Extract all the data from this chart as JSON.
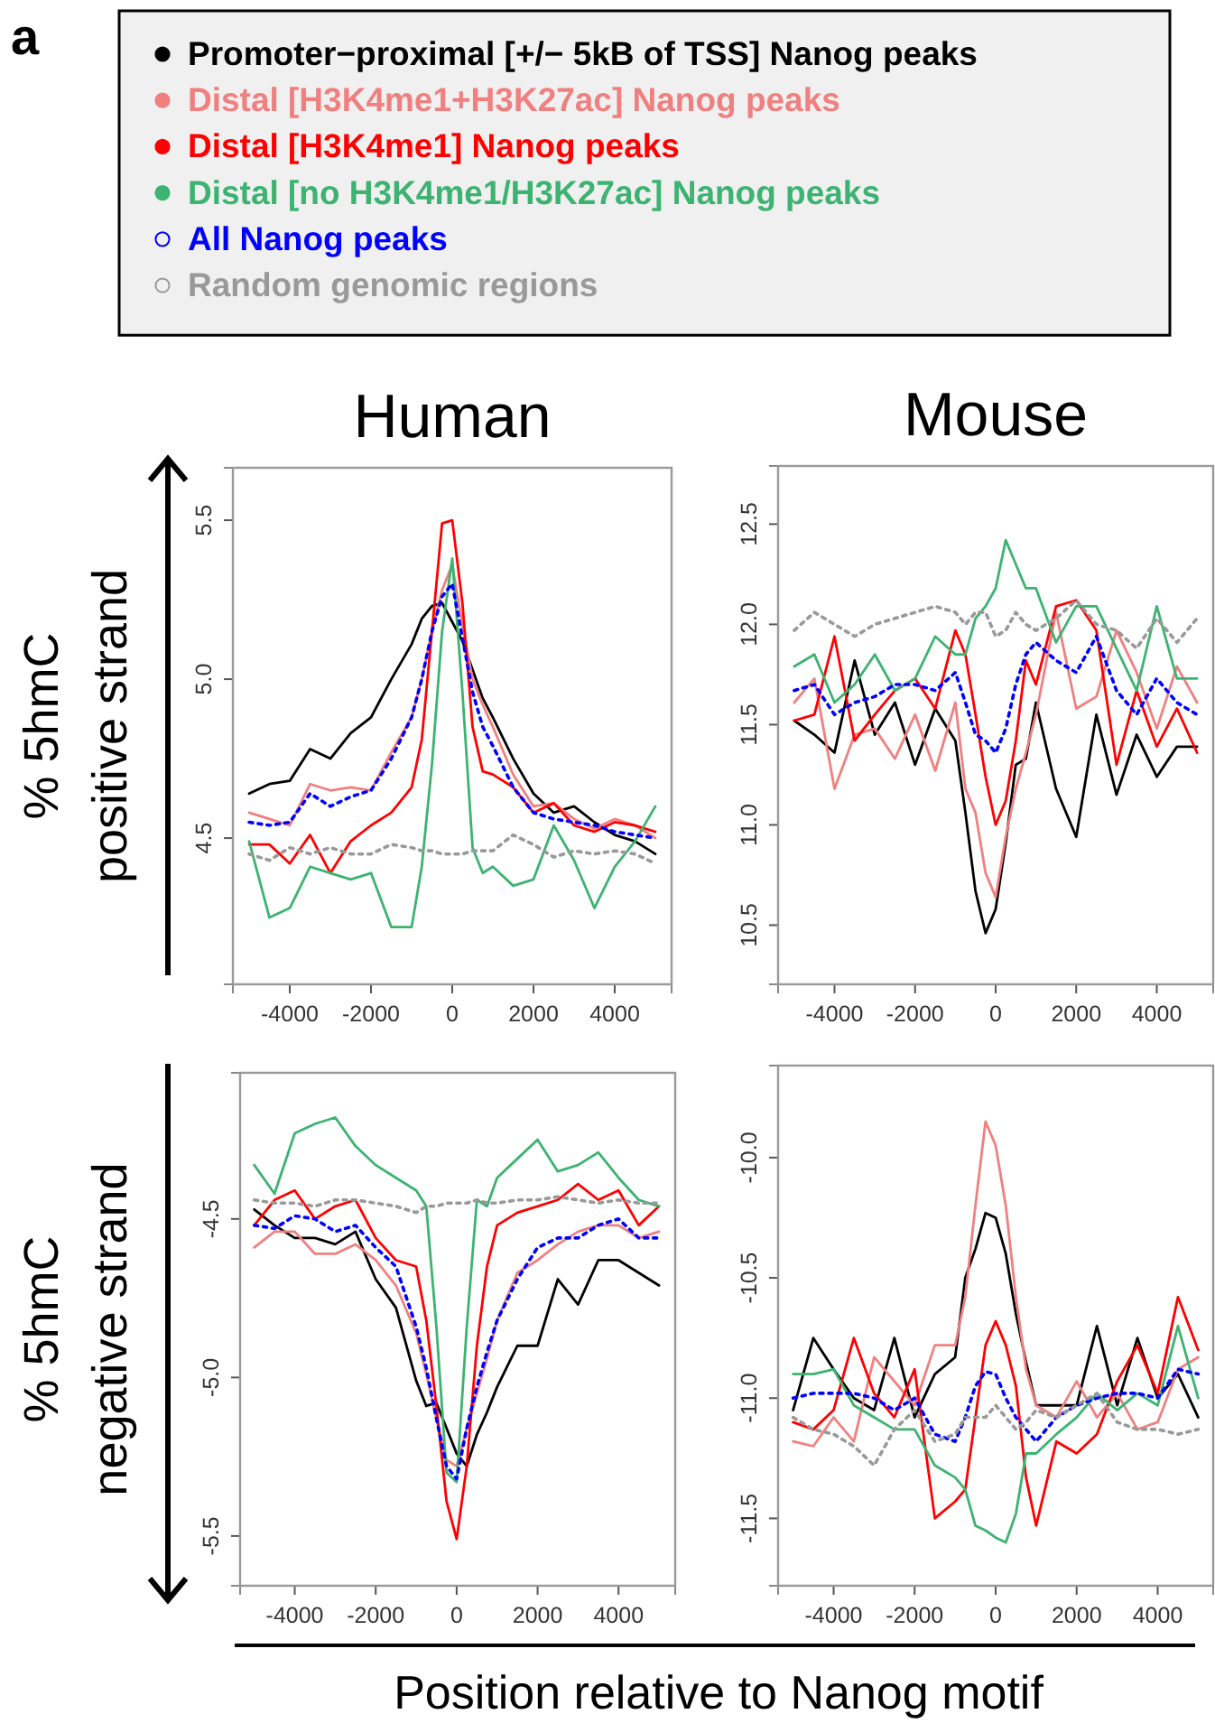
{
  "chart_data": [
    {
      "type": "line",
      "title": "Human",
      "ylabel": "% 5hmC positive strand",
      "annotations": [
        "a"
      ],
      "legend": "top",
      "xlim": [
        -5400,
        5400
      ],
      "ylim": [
        4.04,
        5.665
      ],
      "xticks": [
        -4000,
        -2000,
        0,
        2000,
        4000
      ],
      "yticks": [
        4.5,
        {
          "value": 5,
          "label": "5.0"
        },
        5.5
      ],
      "x": [
        -5000,
        -4500,
        -4000,
        -3500,
        -3000,
        -2500,
        -2000,
        -1500,
        -1000,
        -750,
        -500,
        -250,
        0,
        250,
        500,
        750,
        1000,
        1500,
        2000,
        2500,
        3000,
        3500,
        4000,
        4500,
        5000
      ],
      "series": [
        {
          "name": "Promoter−proximal [+/− 5kB of TSS] Nanog peaks",
          "color": "#000000",
          "line_style": "solid",
          "values": [
            4.64,
            4.67,
            4.68,
            4.78,
            4.75,
            4.83,
            4.88,
            5.0,
            5.11,
            5.19,
            5.23,
            5.24,
            5.18,
            5.12,
            5.03,
            4.94,
            4.88,
            4.75,
            4.64,
            4.58,
            4.6,
            4.55,
            4.51,
            4.49,
            4.45
          ]
        },
        {
          "name": "Distal [H3K4me1+H3K27ac] Nanog peaks",
          "color": "#f08080",
          "line_style": "solid",
          "values": [
            4.58,
            4.56,
            4.54,
            4.67,
            4.65,
            4.66,
            4.65,
            4.77,
            4.88,
            5.0,
            5.15,
            5.28,
            5.36,
            5.17,
            5.0,
            4.92,
            4.85,
            4.7,
            4.6,
            4.61,
            4.56,
            4.53,
            4.56,
            4.54,
            4.5
          ]
        },
        {
          "name": "Distal [H3K4me1] Nanog peaks",
          "color": "#ff0000",
          "line_style": "solid",
          "values": [
            4.48,
            4.48,
            4.42,
            4.51,
            4.39,
            4.49,
            4.54,
            4.58,
            4.66,
            4.81,
            5.15,
            5.49,
            5.5,
            5.24,
            4.85,
            4.71,
            4.7,
            4.66,
            4.58,
            4.61,
            4.54,
            4.52,
            4.55,
            4.54,
            4.52
          ]
        },
        {
          "name": "Distal [no H3K4me1/H3K27ac] Nanog peaks",
          "color": "#3cb371",
          "line_style": "solid",
          "values": [
            4.49,
            4.25,
            4.28,
            4.41,
            4.39,
            4.37,
            4.39,
            4.22,
            4.22,
            4.41,
            4.73,
            5.15,
            5.38,
            4.96,
            4.47,
            4.39,
            4.41,
            4.35,
            4.37,
            4.54,
            4.43,
            4.28,
            4.41,
            4.49,
            4.6
          ]
        },
        {
          "name": "All Nanog peaks",
          "color": "#0000ff",
          "line_style": "dotted",
          "values": [
            4.55,
            4.54,
            4.55,
            4.64,
            4.6,
            4.63,
            4.65,
            4.75,
            4.88,
            5.0,
            5.15,
            5.26,
            5.3,
            5.13,
            4.96,
            4.85,
            4.79,
            4.66,
            4.58,
            4.56,
            4.55,
            4.54,
            4.52,
            4.51,
            4.5
          ]
        },
        {
          "name": "Random genomic regions",
          "color": "#999999",
          "line_style": "dotted",
          "values": [
            4.45,
            4.43,
            4.47,
            4.45,
            4.47,
            4.45,
            4.45,
            4.48,
            4.47,
            4.46,
            4.46,
            4.45,
            4.45,
            4.45,
            4.46,
            4.46,
            4.46,
            4.51,
            4.48,
            4.44,
            4.46,
            4.45,
            4.46,
            4.45,
            4.42
          ]
        }
      ]
    },
    {
      "type": "line",
      "title": "Mouse",
      "xlim": [
        -5400,
        5400
      ],
      "ylim": [
        10.205,
        12.79
      ],
      "xticks": [
        -4000,
        -2000,
        0,
        2000,
        4000
      ],
      "yticks": [
        10.5,
        {
          "value": 11,
          "label": "11.0"
        },
        11.5,
        {
          "value": 12,
          "label": "12.0"
        },
        12.5
      ],
      "x": [
        -5000,
        -4500,
        -4000,
        -3500,
        -3000,
        -2500,
        -2000,
        -1500,
        -1000,
        -750,
        -500,
        -250,
        0,
        250,
        500,
        750,
        1000,
        1500,
        2000,
        2500,
        3000,
        3500,
        4000,
        4500,
        5000
      ],
      "series": [
        {
          "color": "#000000",
          "line_style": "solid",
          "values": [
            11.52,
            11.45,
            11.36,
            11.82,
            11.45,
            11.61,
            11.3,
            11.58,
            11.42,
            11.06,
            10.67,
            10.46,
            10.58,
            10.91,
            11.3,
            11.33,
            11.61,
            11.18,
            10.94,
            11.55,
            11.15,
            11.45,
            11.24,
            11.39,
            11.39
          ]
        },
        {
          "color": "#f08080",
          "line_style": "solid",
          "values": [
            11.61,
            11.73,
            11.18,
            11.45,
            11.48,
            11.33,
            11.55,
            11.27,
            11.61,
            11.18,
            11.06,
            10.76,
            10.64,
            10.94,
            11.18,
            11.36,
            11.55,
            12.06,
            11.58,
            11.64,
            11.97,
            11.76,
            11.48,
            11.79,
            11.61
          ]
        },
        {
          "color": "#ff0000",
          "line_style": "solid",
          "values": [
            11.52,
            11.55,
            11.94,
            11.42,
            11.55,
            11.67,
            11.73,
            11.58,
            11.97,
            11.85,
            11.55,
            11.24,
            11.0,
            11.12,
            11.42,
            11.82,
            11.7,
            12.09,
            12.12,
            11.97,
            11.3,
            11.67,
            11.39,
            11.58,
            11.36
          ]
        },
        {
          "color": "#3cb371",
          "line_style": "solid",
          "values": [
            11.79,
            11.85,
            11.61,
            11.7,
            11.85,
            11.67,
            11.73,
            11.94,
            11.85,
            11.85,
            12.03,
            12.09,
            12.18,
            12.42,
            12.3,
            12.18,
            12.18,
            11.91,
            12.09,
            12.09,
            11.88,
            11.67,
            12.09,
            11.73,
            11.73
          ]
        },
        {
          "color": "#0000ff",
          "line_style": "dotted",
          "values": [
            11.67,
            11.7,
            11.55,
            11.61,
            11.64,
            11.7,
            11.7,
            11.67,
            11.76,
            11.61,
            11.45,
            11.42,
            11.36,
            11.48,
            11.7,
            11.85,
            11.91,
            11.82,
            11.76,
            11.94,
            11.67,
            11.55,
            11.73,
            11.61,
            11.55
          ]
        },
        {
          "color": "#999999",
          "line_style": "dotted",
          "values": [
            11.97,
            12.06,
            12.0,
            11.94,
            12.0,
            12.03,
            12.06,
            12.09,
            12.06,
            12.0,
            12.06,
            12.06,
            11.94,
            11.97,
            12.06,
            12.0,
            11.97,
            12.03,
            12.12,
            12.0,
            11.97,
            11.88,
            12.03,
            11.91,
            12.03
          ]
        }
      ]
    },
    {
      "type": "line",
      "ylabel": "% 5hmC negative strand",
      "xlabel": "Position relative to Nanog motif",
      "xlim": [
        -5350,
        5400
      ],
      "ylim": [
        -5.657,
        -4.039
      ],
      "xticks": [
        -4000,
        -2000,
        0,
        2000,
        4000
      ],
      "yticks": [
        -5.5,
        {
          "value": -5,
          "label": "-5.0"
        },
        -4.5
      ],
      "x": [
        -5000,
        -4500,
        -4000,
        -3500,
        -3000,
        -2500,
        -2000,
        -1500,
        -1000,
        -750,
        -500,
        -250,
        0,
        250,
        500,
        750,
        1000,
        1500,
        2000,
        2500,
        3000,
        3500,
        4000,
        4500,
        5000
      ],
      "series": [
        {
          "color": "#000000",
          "line_style": "solid",
          "values": [
            -4.47,
            -4.52,
            -4.56,
            -4.56,
            -4.58,
            -4.54,
            -4.69,
            -4.78,
            -5.01,
            -5.09,
            -5.08,
            -5.16,
            -5.24,
            -5.28,
            -5.18,
            -5.11,
            -5.03,
            -4.9,
            -4.9,
            -4.69,
            -4.77,
            -4.63,
            -4.63,
            -4.67,
            -4.71
          ]
        },
        {
          "color": "#f08080",
          "line_style": "solid",
          "values": [
            -4.59,
            -4.54,
            -4.54,
            -4.61,
            -4.61,
            -4.58,
            -4.63,
            -4.71,
            -4.86,
            -4.99,
            -5.13,
            -5.26,
            -5.28,
            -5.16,
            -5.05,
            -4.94,
            -4.82,
            -4.67,
            -4.63,
            -4.58,
            -4.54,
            -4.52,
            -4.52,
            -4.56,
            -4.54
          ]
        },
        {
          "color": "#ff0000",
          "line_style": "solid",
          "values": [
            -4.52,
            -4.44,
            -4.41,
            -4.5,
            -4.46,
            -4.44,
            -4.56,
            -4.63,
            -4.65,
            -4.82,
            -5.09,
            -5.39,
            -5.51,
            -5.28,
            -4.9,
            -4.65,
            -4.52,
            -4.48,
            -4.46,
            -4.44,
            -4.39,
            -4.44,
            -4.41,
            -4.52,
            -4.46
          ]
        },
        {
          "color": "#3cb371",
          "line_style": "solid",
          "values": [
            -4.33,
            -4.42,
            -4.23,
            -4.2,
            -4.18,
            -4.27,
            -4.33,
            -4.37,
            -4.41,
            -4.46,
            -4.84,
            -5.3,
            -5.33,
            -4.84,
            -4.44,
            -4.46,
            -4.37,
            -4.31,
            -4.25,
            -4.35,
            -4.33,
            -4.29,
            -4.37,
            -4.44,
            -4.46
          ]
        },
        {
          "color": "#0000ff",
          "line_style": "dotted",
          "values": [
            -4.52,
            -4.53,
            -4.49,
            -4.5,
            -4.54,
            -4.52,
            -4.59,
            -4.65,
            -4.84,
            -4.97,
            -5.13,
            -5.28,
            -5.32,
            -5.16,
            -5.03,
            -4.92,
            -4.82,
            -4.69,
            -4.59,
            -4.56,
            -4.56,
            -4.52,
            -4.5,
            -4.56,
            -4.56
          ]
        },
        {
          "color": "#999999",
          "line_style": "dotted",
          "values": [
            -4.44,
            -4.45,
            -4.45,
            -4.46,
            -4.44,
            -4.44,
            -4.45,
            -4.46,
            -4.48,
            -4.46,
            -4.46,
            -4.45,
            -4.45,
            -4.45,
            -4.44,
            -4.45,
            -4.45,
            -4.44,
            -4.44,
            -4.43,
            -4.44,
            -4.45,
            -4.44,
            -4.45,
            -4.45
          ]
        }
      ]
    },
    {
      "type": "line",
      "xlim": [
        -5370,
        5370
      ],
      "ylim": [
        -11.78,
        -9.6175
      ],
      "xticks": [
        -4000,
        -2000,
        0,
        2000,
        4000
      ],
      "yticks": [
        -11.5,
        {
          "value": -11,
          "label": "-11.0"
        },
        -10.5,
        {
          "value": -10,
          "label": "-10.0"
        }
      ],
      "x": [
        -5000,
        -4500,
        -4000,
        -3500,
        -3000,
        -2500,
        -2000,
        -1500,
        -1000,
        -750,
        -500,
        -250,
        0,
        250,
        500,
        750,
        1000,
        1500,
        2000,
        2500,
        3000,
        3500,
        4000,
        4500,
        5000
      ],
      "series": [
        {
          "color": "#000000",
          "line_style": "solid",
          "values": [
            -11.05,
            -10.75,
            -10.88,
            -11.0,
            -11.05,
            -10.75,
            -11.08,
            -10.9,
            -10.83,
            -10.5,
            -10.38,
            -10.23,
            -10.25,
            -10.4,
            -10.65,
            -10.85,
            -11.03,
            -11.03,
            -11.03,
            -10.7,
            -11.03,
            -10.75,
            -11.0,
            -10.9,
            -11.08
          ]
        },
        {
          "color": "#f08080",
          "line_style": "solid",
          "values": [
            -11.18,
            -11.2,
            -11.08,
            -11.18,
            -10.83,
            -10.93,
            -11.03,
            -10.78,
            -10.78,
            -10.58,
            -10.2,
            -9.85,
            -9.95,
            -10.2,
            -10.58,
            -10.88,
            -11.03,
            -11.08,
            -10.93,
            -11.08,
            -10.98,
            -11.13,
            -11.1,
            -10.88,
            -10.83
          ]
        },
        {
          "color": "#ff0000",
          "line_style": "solid",
          "values": [
            -11.1,
            -11.13,
            -11.05,
            -10.75,
            -10.98,
            -11.08,
            -10.88,
            -11.5,
            -11.43,
            -11.38,
            -11.08,
            -10.78,
            -10.68,
            -10.78,
            -10.95,
            -11.33,
            -11.53,
            -11.18,
            -11.23,
            -11.15,
            -10.93,
            -10.78,
            -10.98,
            -10.58,
            -10.8
          ]
        },
        {
          "color": "#3cb371",
          "line_style": "solid",
          "values": [
            -10.9,
            -10.9,
            -10.88,
            -11.03,
            -11.08,
            -11.13,
            -11.13,
            -11.28,
            -11.33,
            -11.38,
            -11.53,
            -11.55,
            -11.58,
            -11.6,
            -11.48,
            -11.23,
            -11.23,
            -11.15,
            -11.08,
            -10.98,
            -11.05,
            -10.98,
            -11.03,
            -10.7,
            -11.0
          ]
        },
        {
          "color": "#0000ff",
          "line_style": "dotted",
          "values": [
            -11.0,
            -10.98,
            -10.98,
            -10.98,
            -11.0,
            -11.05,
            -11.0,
            -11.15,
            -11.18,
            -11.08,
            -10.95,
            -10.89,
            -10.9,
            -11.0,
            -11.08,
            -11.13,
            -11.18,
            -11.08,
            -11.03,
            -11.0,
            -10.98,
            -10.98,
            -11.0,
            -10.88,
            -10.9
          ]
        },
        {
          "color": "#999999",
          "line_style": "dotted",
          "values": [
            -11.08,
            -11.13,
            -11.15,
            -11.2,
            -11.28,
            -11.13,
            -11.05,
            -11.18,
            -11.15,
            -11.08,
            -11.08,
            -11.08,
            -11.03,
            -11.08,
            -11.13,
            -11.1,
            -11.05,
            -11.08,
            -11.03,
            -10.98,
            -11.1,
            -11.13,
            -11.13,
            -11.15,
            -11.13
          ]
        }
      ]
    }
  ]
}
